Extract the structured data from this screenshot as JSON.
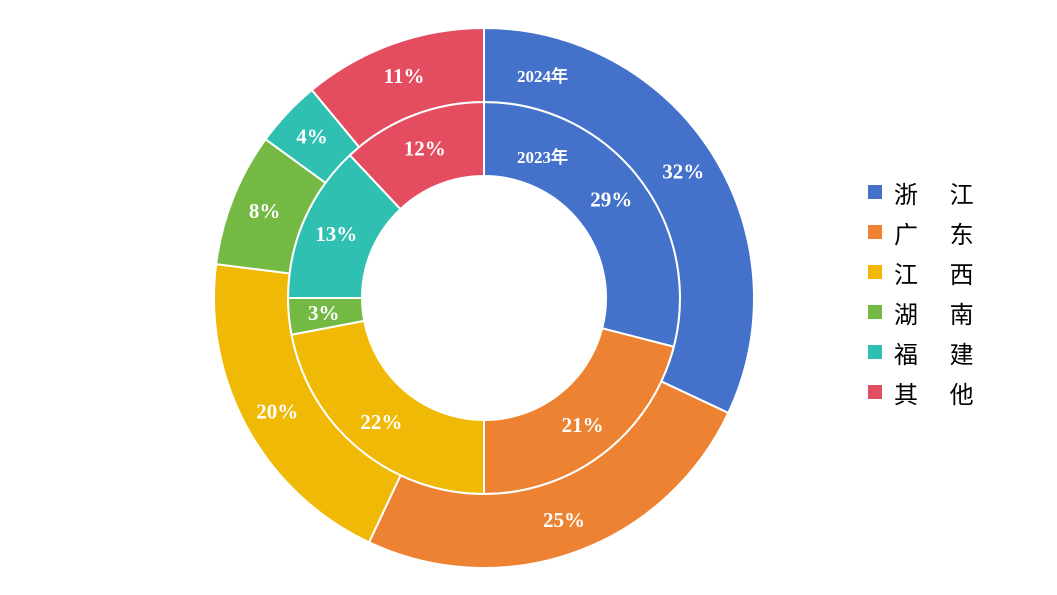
{
  "chart_data": {
    "type": "donut",
    "categories": [
      "浙江",
      "广东",
      "江西",
      "湖南",
      "福建",
      "其他"
    ],
    "colors": [
      "#4472CA",
      "#ED8232",
      "#F0B905",
      "#74B943",
      "#2FC0B1",
      "#E44C60"
    ],
    "series": [
      {
        "name": "2023年",
        "ring": "inner",
        "values": [
          29,
          21,
          22,
          3,
          13,
          12
        ],
        "labels": [
          "29%",
          "21%",
          "22%",
          "3%",
          "13%",
          "12%"
        ]
      },
      {
        "name": "2024年",
        "ring": "outer",
        "values": [
          32,
          25,
          20,
          8,
          4,
          11
        ],
        "labels": [
          "32%",
          "25%",
          "20%",
          "8%",
          "4%",
          "11%"
        ]
      }
    ],
    "legend": {
      "position": "right",
      "items": [
        {
          "label": "浙 江",
          "color": "#4472CA"
        },
        {
          "label": "广 东",
          "color": "#ED8232"
        },
        {
          "label": "江 西",
          "color": "#F0B905"
        },
        {
          "label": "湖 南",
          "color": "#74B943"
        },
        {
          "label": "福 建",
          "color": "#2FC0B1"
        },
        {
          "label": "其 他",
          "color": "#E44C60"
        }
      ]
    }
  }
}
